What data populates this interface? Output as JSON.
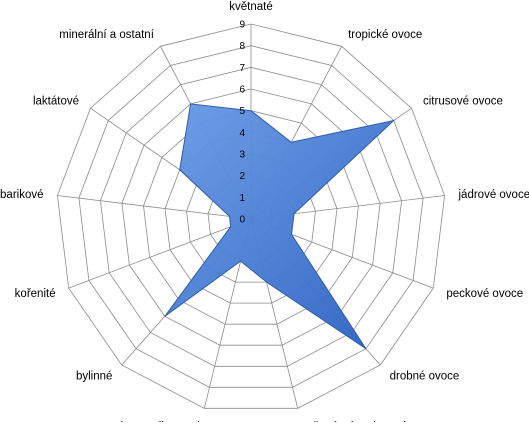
{
  "chart_data": {
    "type": "radar",
    "title": "",
    "categories": [
      "květnaté",
      "tropické ovoce",
      "citrusové ovoce",
      "jádrové ovoce",
      "peckové ovoce",
      "drobné ovoce",
      "sušené a kandované ovoce",
      "karamelizované",
      "bylinné",
      "kořenité",
      "barikové",
      "laktátové",
      "minerální a ostatní"
    ],
    "series": [
      {
        "values": [
          5,
          4,
          8,
          2,
          2,
          8,
          3,
          2,
          6,
          1,
          1,
          4,
          6
        ]
      }
    ],
    "rlim": [
      0,
      9
    ],
    "ticks": [
      0,
      1,
      2,
      3,
      4,
      5,
      6,
      7,
      8,
      9
    ],
    "grid": true,
    "legend": "none",
    "colors": {
      "fill": "#4a7fd6",
      "stroke": "#2f5fa8",
      "grid": "#8c8c8c"
    }
  }
}
